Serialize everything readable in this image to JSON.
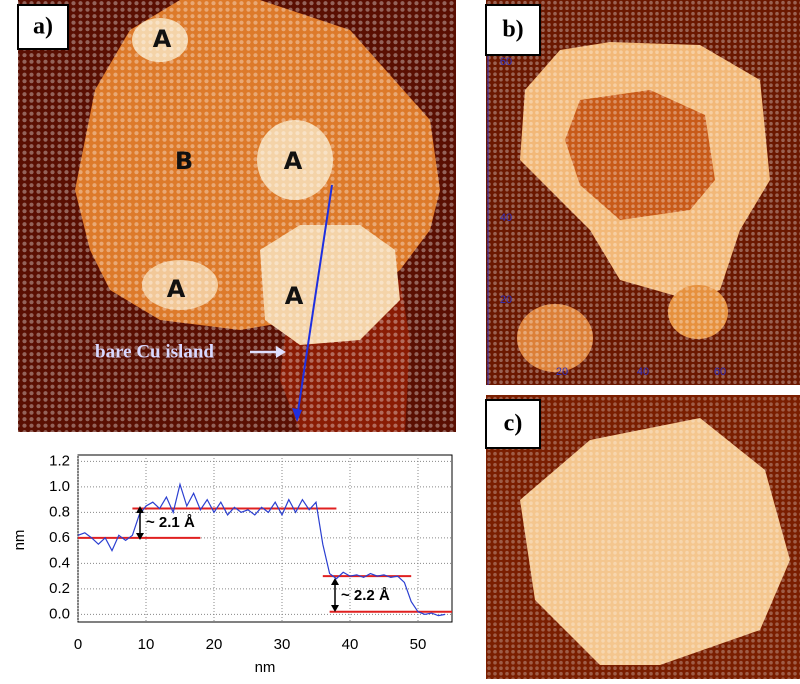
{
  "panels": [
    {
      "label": "a)",
      "annotations": [
        "A",
        "A",
        "A",
        "A",
        "B",
        "bare Cu island"
      ]
    },
    {
      "label": "b)",
      "yticks": [
        60,
        40,
        20
      ],
      "xticks": [
        20,
        40,
        60
      ]
    },
    {
      "label": "c)"
    }
  ],
  "chart_data": {
    "type": "line",
    "x_label": "nm",
    "y_label": "nm",
    "x": [
      0,
      1,
      2,
      3,
      4,
      5,
      6,
      7,
      8,
      9,
      10,
      11,
      12,
      13,
      14,
      15,
      16,
      17,
      18,
      19,
      20,
      21,
      22,
      23,
      24,
      25,
      26,
      27,
      28,
      29,
      30,
      31,
      32,
      33,
      34,
      35,
      36,
      37,
      38,
      39,
      40,
      41,
      42,
      43,
      44,
      45,
      46,
      47,
      48,
      49,
      50,
      51,
      52,
      53,
      54
    ],
    "series": [
      {
        "color": "#2b3fd1",
        "values": [
          0.62,
          0.64,
          0.6,
          0.55,
          0.6,
          0.5,
          0.62,
          0.58,
          0.62,
          0.78,
          0.85,
          0.88,
          0.83,
          0.92,
          0.8,
          1.02,
          0.85,
          0.95,
          0.82,
          0.9,
          0.8,
          0.88,
          0.78,
          0.84,
          0.8,
          0.82,
          0.78,
          0.84,
          0.8,
          0.88,
          0.78,
          0.9,
          0.8,
          0.9,
          0.82,
          0.88,
          0.55,
          0.32,
          0.28,
          0.33,
          0.3,
          0.31,
          0.29,
          0.32,
          0.3,
          0.31,
          0.29,
          0.3,
          0.25,
          0.1,
          0.02,
          0.0,
          0.01,
          -0.01,
          0.0
        ]
      }
    ],
    "reference_lines": [
      {
        "y": 0.6,
        "x": [
          0,
          18
        ]
      },
      {
        "y": 0.83,
        "x": [
          8,
          38
        ]
      },
      {
        "y": 0.3,
        "x": [
          36,
          49
        ]
      },
      {
        "y": 0.02,
        "x": [
          37,
          55
        ]
      }
    ],
    "reference_color": "#e02020",
    "annotations": [
      "~ 2.1 Å",
      "~ 2.2 Å"
    ],
    "xlim": [
      0,
      55
    ],
    "ylim": [
      -0.06,
      1.25
    ],
    "xticks": [
      0,
      10,
      20,
      30,
      40,
      50
    ],
    "yticks": [
      {
        "value": 0,
        "label": "0.0"
      },
      0.2,
      0.4,
      0.6,
      0.8,
      {
        "value": 1,
        "label": "1.0"
      },
      1.2
    ],
    "grid": true
  }
}
